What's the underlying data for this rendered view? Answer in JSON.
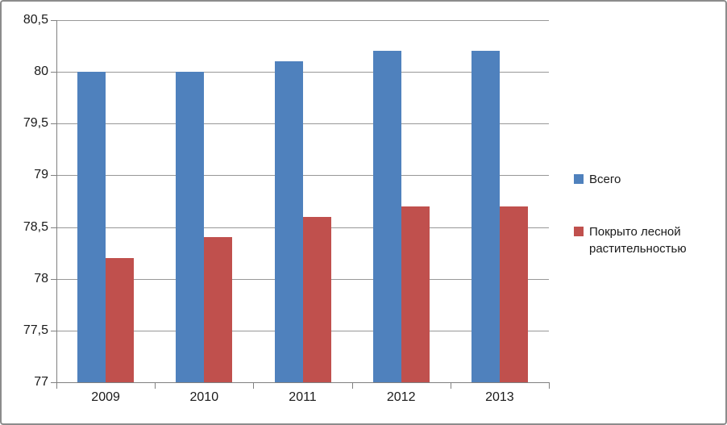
{
  "chart_data": {
    "type": "bar",
    "categories": [
      "2009",
      "2010",
      "2011",
      "2012",
      "2013"
    ],
    "series": [
      {
        "name": "Всего",
        "color": "#4F81BD",
        "values": [
          80,
          80,
          80.1,
          80.2,
          80.2
        ]
      },
      {
        "name": "Покрыто лесной растительностью",
        "color": "#C0504D",
        "values": [
          78.2,
          78.4,
          78.6,
          78.7,
          78.7
        ]
      }
    ],
    "title": "",
    "xlabel": "",
    "ylabel": "",
    "ylim": [
      77,
      80.5
    ],
    "ytick_step": 0.5,
    "ytick_labels": [
      "77",
      "77,5",
      "78",
      "78,5",
      "79",
      "79,5",
      "80",
      "80,5"
    ],
    "grid": true,
    "legend_position": "right"
  },
  "colors": {
    "grid": "#989898",
    "axis": "#808080",
    "text": "#1a1a1a",
    "frame_border": "#8c8c8c",
    "background": "#ffffff"
  }
}
